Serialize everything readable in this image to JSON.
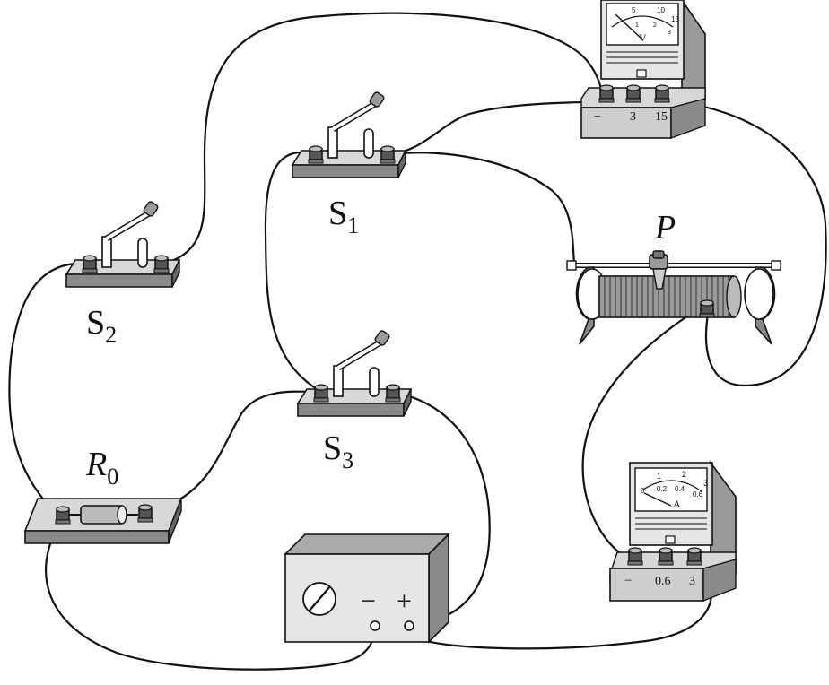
{
  "labels": {
    "s1": "S",
    "s1_sub": "1",
    "s2": "S",
    "s2_sub": "2",
    "s3": "S",
    "s3_sub": "3",
    "r0": "R",
    "r0_sub": "0",
    "p": "P"
  },
  "voltmeter": {
    "scale_top": [
      "5",
      "10",
      "15"
    ],
    "scale_bottom": [
      "1",
      "2",
      "3"
    ],
    "unit": "V",
    "terminals": [
      "−",
      "3",
      "15"
    ]
  },
  "ammeter": {
    "scale_top": [
      "1",
      "2",
      "3"
    ],
    "scale_bottom": [
      "0",
      "0.2",
      "0.4",
      "0.6"
    ],
    "unit": "A",
    "terminals": [
      "−",
      "0.6",
      "3"
    ]
  },
  "power_supply": {
    "minus": "−",
    "plus": "+"
  },
  "colors": {
    "stroke": "#111111",
    "face": "#e6e6e6",
    "side": "#9a9a9a",
    "top": "#cfcfcf"
  }
}
